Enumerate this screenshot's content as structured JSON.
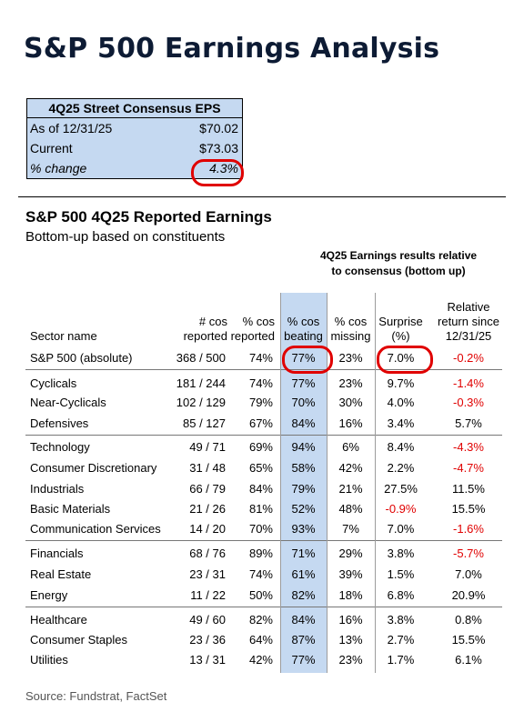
{
  "title": "S&P 500 Earnings Analysis",
  "eps_box": {
    "header": "4Q25 Street Consensus EPS",
    "rows": [
      {
        "label": "As of 12/31/25",
        "value": "$70.02"
      },
      {
        "label": "Current",
        "value": "$73.03"
      },
      {
        "label": "% change",
        "value": "4.3%"
      }
    ]
  },
  "section": {
    "title": "S&P 500 4Q25 Reported Earnings",
    "subtitle": "Bottom-up based on constituents",
    "group_header": [
      "4Q25 Earnings results relative",
      "to consensus (bottom up)"
    ]
  },
  "table": {
    "columns": [
      [
        "Sector name"
      ],
      [
        "# cos",
        "reported"
      ],
      [
        "% cos",
        "reported"
      ],
      [
        "% cos",
        "beating"
      ],
      [
        "% cos",
        "missing"
      ],
      [
        "Surprise",
        "(%)"
      ],
      [
        "Relative",
        "return since",
        "12/31/25"
      ]
    ],
    "rows": [
      [
        "S&P 500 (absolute)",
        "368 / 500",
        "74%",
        "77%",
        "23%",
        "7.0%",
        "-0.2%"
      ],
      [
        "Cyclicals",
        "181 / 244",
        "74%",
        "77%",
        "23%",
        "9.7%",
        "-1.4%"
      ],
      [
        "Near-Cyclicals",
        "102 / 129",
        "79%",
        "70%",
        "30%",
        "4.0%",
        "-0.3%"
      ],
      [
        "Defensives",
        "85 / 127",
        "67%",
        "84%",
        "16%",
        "3.4%",
        "5.7%"
      ],
      [
        "Technology",
        "49 / 71",
        "69%",
        "94%",
        "6%",
        "8.4%",
        "-4.3%"
      ],
      [
        "Consumer Discretionary",
        "31 / 48",
        "65%",
        "58%",
        "42%",
        "2.2%",
        "-4.7%"
      ],
      [
        "Industrials",
        "66 / 79",
        "84%",
        "79%",
        "21%",
        "27.5%",
        "11.5%"
      ],
      [
        "Basic Materials",
        "21 / 26",
        "81%",
        "52%",
        "48%",
        "-0.9%",
        "15.5%"
      ],
      [
        "Communication Services",
        "14 / 20",
        "70%",
        "93%",
        "7%",
        "7.0%",
        "-1.6%"
      ],
      [
        "Financials",
        "68 / 76",
        "89%",
        "71%",
        "29%",
        "3.8%",
        "-5.7%"
      ],
      [
        "Real Estate",
        "23 / 31",
        "74%",
        "61%",
        "39%",
        "1.5%",
        "7.0%"
      ],
      [
        "Energy",
        "11 / 22",
        "50%",
        "82%",
        "18%",
        "6.8%",
        "20.9%"
      ],
      [
        "Healthcare",
        "49 / 60",
        "82%",
        "84%",
        "16%",
        "3.8%",
        "0.8%"
      ],
      [
        "Consumer Staples",
        "23 / 36",
        "64%",
        "87%",
        "13%",
        "2.7%",
        "15.5%"
      ],
      [
        "Utilities",
        "13 / 31",
        "42%",
        "77%",
        "23%",
        "1.7%",
        "6.1%"
      ]
    ]
  },
  "source": "Source: Fundstrat, FactSet",
  "colors": {
    "highlight": "#c5d9f1",
    "negative": "#e00000",
    "callout": "#e00000",
    "title": "#0d1b34"
  }
}
